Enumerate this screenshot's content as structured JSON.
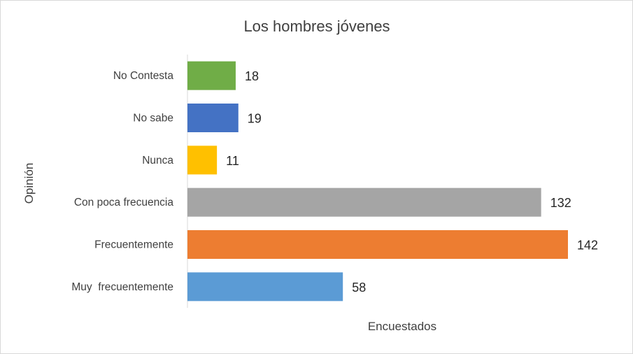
{
  "chart_data": {
    "type": "bar",
    "orientation": "horizontal",
    "title": "Los hombres jóvenes",
    "xlabel": "Encuestados",
    "ylabel": "Opinión",
    "categories": [
      "No Contesta",
      "No sabe",
      "Nunca",
      "Con poca frecuencia",
      "Frecuentemente",
      "Muy  frecuentemente"
    ],
    "values": [
      18,
      19,
      11,
      132,
      142,
      58
    ],
    "colors": [
      "#70ad47",
      "#4472c4",
      "#ffc000",
      "#a5a5a5",
      "#ed7d31",
      "#5b9bd5"
    ],
    "xlim": [
      0,
      142
    ],
    "grid": false,
    "legend": "none"
  }
}
